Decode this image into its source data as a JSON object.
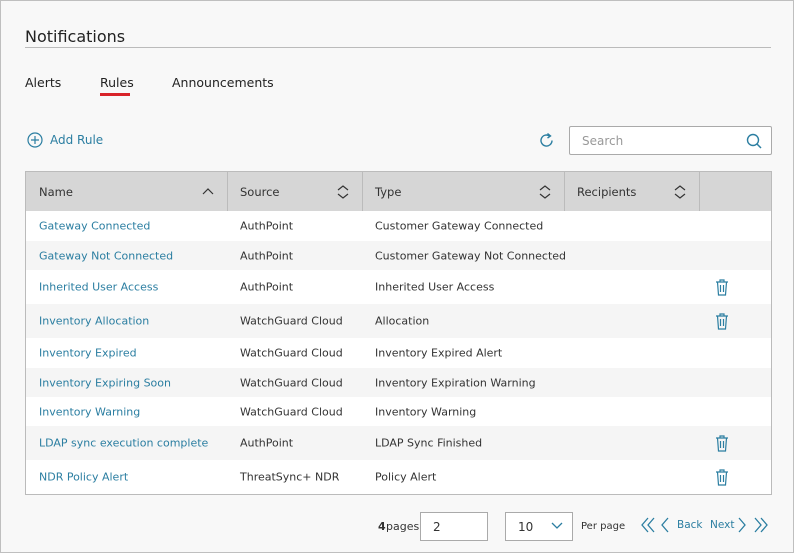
{
  "header": {
    "title": "Notifications"
  },
  "tabs": [
    {
      "label": "Alerts",
      "active": false
    },
    {
      "label": "Rules",
      "active": true
    },
    {
      "label": "Announcements",
      "active": false
    }
  ],
  "toolbar": {
    "add_label": "Add Rule",
    "search_placeholder": "Search"
  },
  "table": {
    "columns": [
      "Name",
      "Source",
      "Type",
      "Recipients"
    ],
    "rows": [
      {
        "name": "Gateway Connected",
        "source": "AuthPoint",
        "type": "Customer Gateway Connected",
        "deletable": false
      },
      {
        "name": "Gateway Not Connected",
        "source": "AuthPoint",
        "type": "Customer Gateway Not Connected",
        "deletable": false
      },
      {
        "name": "Inherited User Access",
        "source": "AuthPoint",
        "type": "Inherited User Access",
        "deletable": true
      },
      {
        "name": "Inventory Allocation",
        "source": "WatchGuard Cloud",
        "type": "Allocation",
        "deletable": true
      },
      {
        "name": "Inventory Expired",
        "source": "WatchGuard Cloud",
        "type": "Inventory Expired Alert",
        "deletable": false
      },
      {
        "name": "Inventory Expiring Soon",
        "source": "WatchGuard Cloud",
        "type": "Inventory Expiration Warning",
        "deletable": false
      },
      {
        "name": "Inventory Warning",
        "source": "WatchGuard Cloud",
        "type": "Inventory Warning",
        "deletable": false
      },
      {
        "name": "LDAP sync execution complete",
        "source": "AuthPoint",
        "type": "LDAP Sync Finished",
        "deletable": true
      },
      {
        "name": "NDR Policy Alert",
        "source": "ThreatSync+ NDR",
        "type": "Policy Alert",
        "deletable": true
      }
    ]
  },
  "pagination": {
    "pages": 4,
    "pages_label": "pages",
    "page": 2,
    "per_page": 10,
    "per_page_label": "Per page",
    "back": "Back",
    "next": "Next"
  }
}
